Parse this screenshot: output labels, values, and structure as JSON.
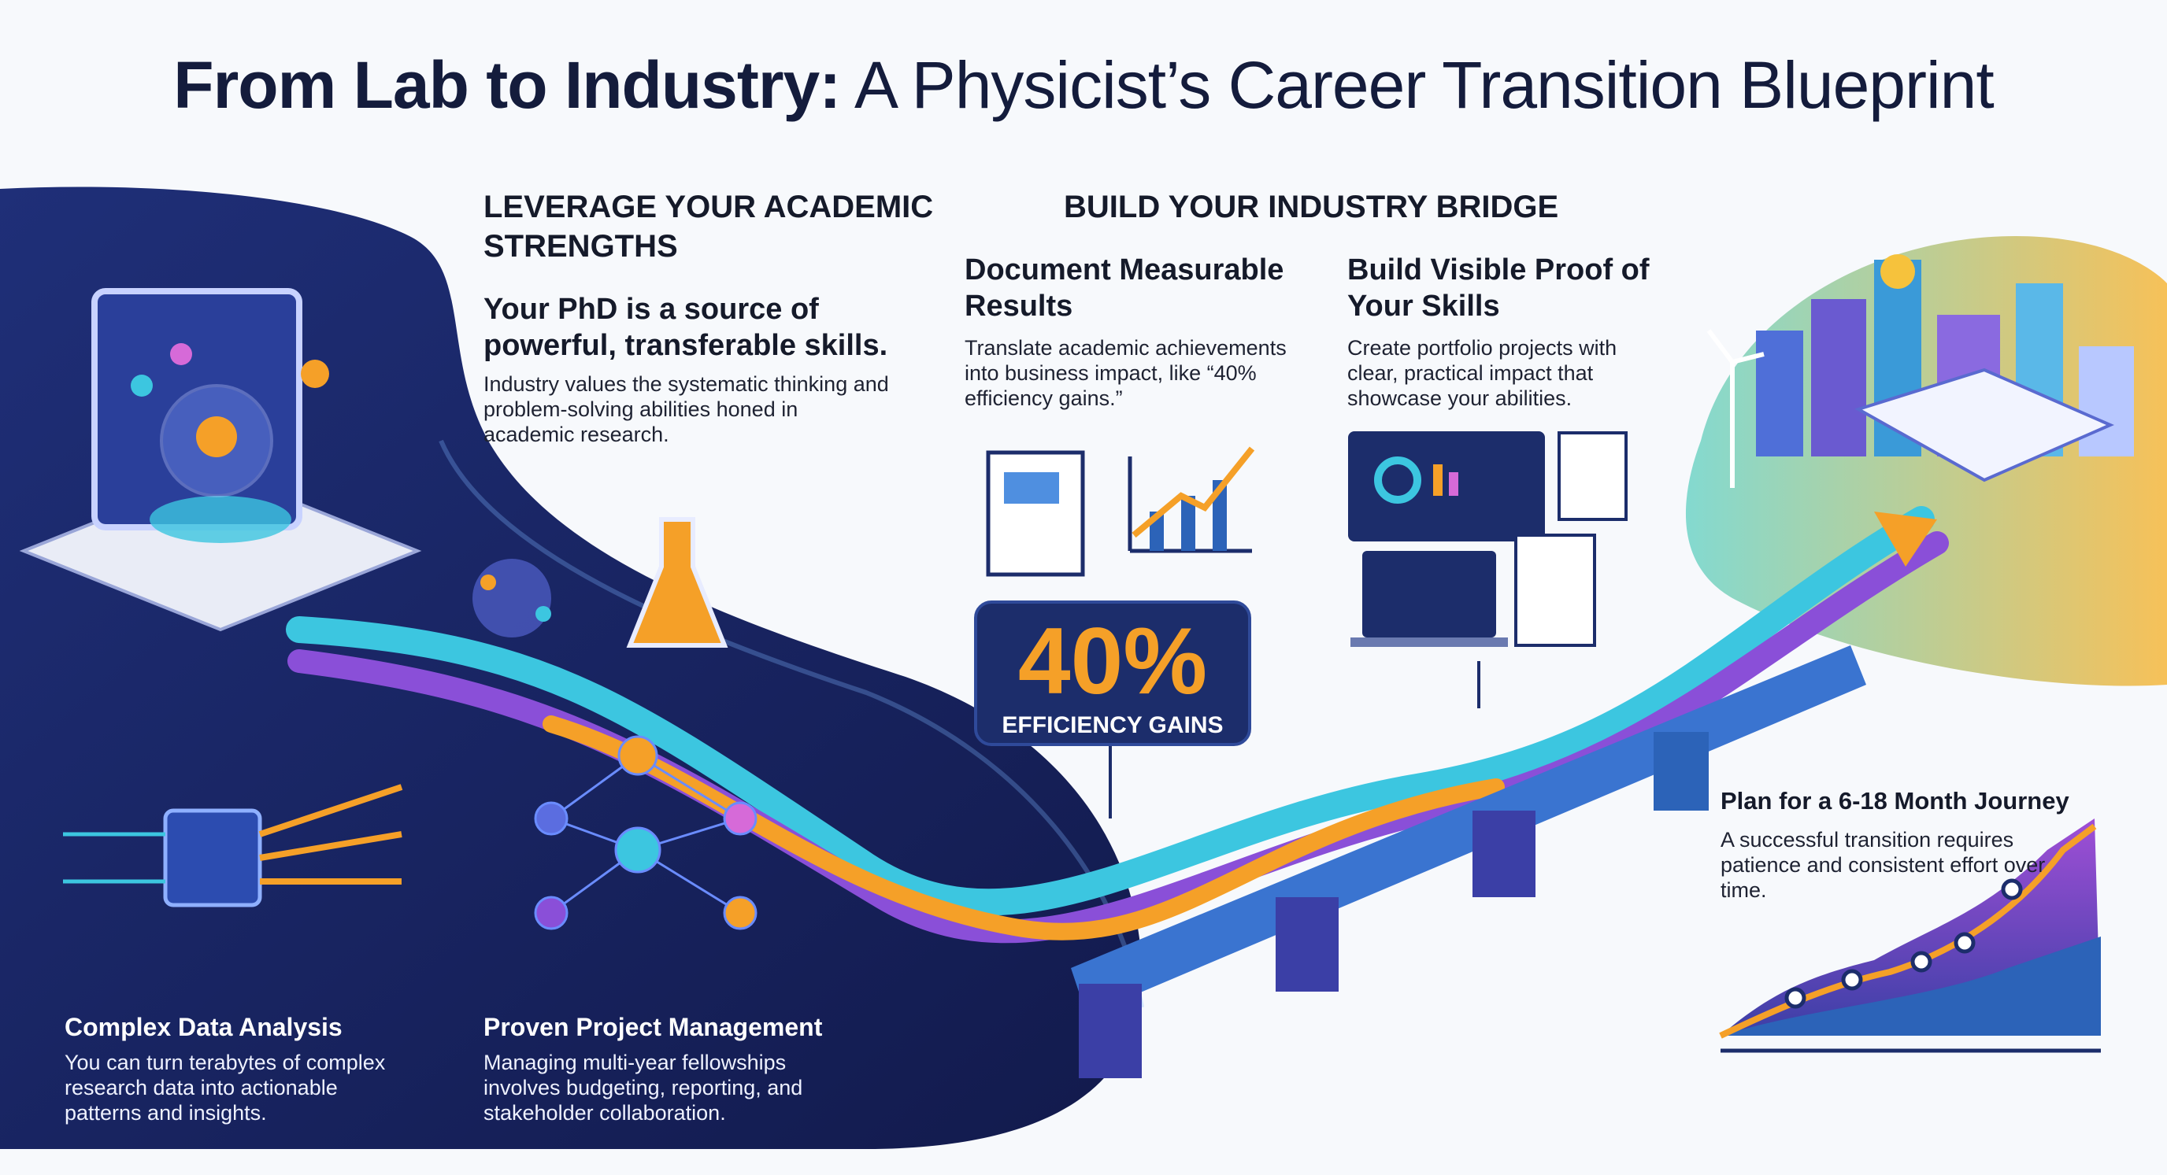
{
  "title": {
    "bold": "From Lab to Industry:",
    "rest": " A Physicist’s Career Transition Blueprint"
  },
  "left_section": {
    "heading": "LEVERAGE YOUR ACADEMIC STRENGTHS",
    "subheading": "Your PhD is a source of powerful, transferable skills.",
    "body": "Industry values the systematic thinking and problem-solving abilities honed in academic research.",
    "cards": [
      {
        "title": "Complex Data Analysis",
        "body": "You can turn terabytes of complex research data into actionable patterns and insights."
      },
      {
        "title": "Proven Project Management",
        "body": "Managing multi-year fellowships involves budgeting, reporting, and stakeholder collaboration."
      }
    ]
  },
  "right_section": {
    "heading": "BUILD YOUR INDUSTRY BRIDGE",
    "items": [
      {
        "title": "Document Measurable Results",
        "body": "Translate academic achievements into business impact, like “40% efficiency gains.”"
      },
      {
        "title": "Build Visible Proof of Your Skills",
        "body": "Create portfolio projects with clear, practical impact that showcase your abilities."
      },
      {
        "title": "Plan for a 6-18 Month Journey",
        "body": "A successful transition requires patience and consistent effort over time."
      }
    ],
    "callout": {
      "value": "40%",
      "label": "EFFICIENCY GAINS"
    }
  },
  "colors": {
    "navy": "#16215a",
    "orange": "#f5a028",
    "purple": "#8a4fd8",
    "cyan": "#3cc6e0"
  },
  "icons": [
    "lab-equipment-icon",
    "molecule-icon",
    "flask-icon",
    "report-document-icon",
    "growth-chart-icon",
    "dashboard-icon",
    "code-laptop-icon",
    "chip-icon",
    "network-icon",
    "bridge-icon",
    "city-icon",
    "lightbulb-icon",
    "wind-turbine-icon"
  ]
}
